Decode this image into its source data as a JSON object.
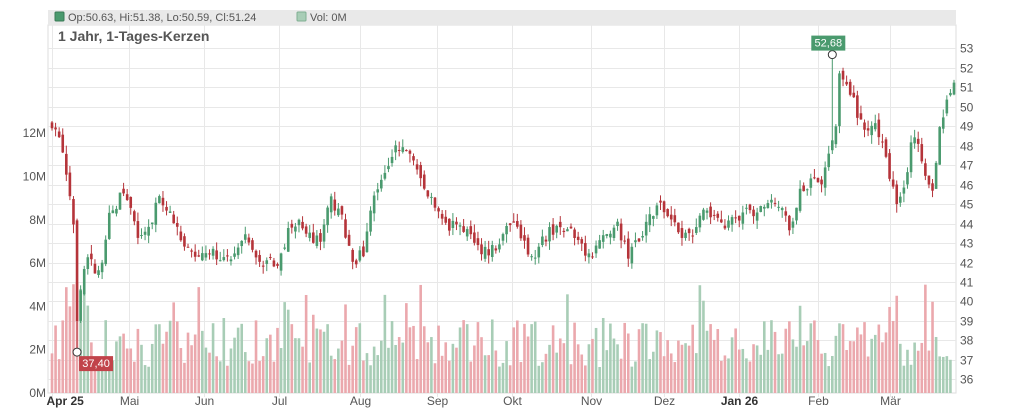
{
  "legend": {
    "ohlc_text": "Op:50.63, Hi:51.38, Lo:50.59, Cl:51.24",
    "vol_text": "Vol: 0M",
    "ohlc_color": "#4a9a6e",
    "vol_color": "#a8cdb6"
  },
  "chart_title": "1 Jahr, 1-Tages-Kerzen",
  "colors": {
    "up": "#4a9a6e",
    "down": "#b5343a",
    "vol_up": "#a8cdb6",
    "vol_down": "#eba8ad",
    "grid": "#e8e8e8",
    "high_marker": "#4a9a6e",
    "low_marker": "#c1434a"
  },
  "chart_data": {
    "type": "candlestick",
    "title": "1 Jahr, 1-Tages-Kerzen",
    "price_axis": {
      "range": [
        35.3,
        54.2
      ],
      "ticks": [
        36,
        37,
        38,
        39,
        40,
        41,
        42,
        43,
        44,
        45,
        46,
        47,
        48,
        49,
        50,
        51,
        52,
        53
      ],
      "position": "right"
    },
    "volume_axis": {
      "range_millions": [
        0,
        17
      ],
      "ticks": [
        "0M",
        "2M",
        "4M",
        "6M",
        "8M",
        "10M",
        "12M"
      ],
      "tick_values": [
        0,
        2,
        4,
        6,
        8,
        10,
        12
      ],
      "position": "left"
    },
    "x_labels": [
      "Apr 25",
      "Mai",
      "Jun",
      "Jul",
      "Aug",
      "Sep",
      "Okt",
      "Nov",
      "Dez",
      "Jan 26",
      "Feb",
      "Mär"
    ],
    "x_label_days": [
      0,
      21.5,
      42.5,
      63.5,
      86,
      107.5,
      128.5,
      150.5,
      171,
      192,
      214,
      234
    ],
    "bold_labels": [
      "Apr 25",
      "Jan 26"
    ],
    "total_days": 253,
    "markers": [
      {
        "label": "52,68",
        "day": 218,
        "value": 52.68,
        "type": "high"
      },
      {
        "label": "37,40",
        "day": 7,
        "value": 37.4,
        "type": "low"
      }
    ],
    "close_path": [
      [
        0,
        49.0
      ],
      [
        2,
        48.2
      ],
      [
        4,
        46.6
      ],
      [
        6,
        44.2
      ],
      [
        7,
        39.0
      ],
      [
        9,
        41.6
      ],
      [
        10,
        42.5
      ],
      [
        12,
        41.5
      ],
      [
        14,
        41.8
      ],
      [
        16,
        44.3
      ],
      [
        18,
        44.8
      ],
      [
        20,
        45.8
      ],
      [
        22,
        45.0
      ],
      [
        24,
        43.0
      ],
      [
        26,
        43.3
      ],
      [
        28,
        44.3
      ],
      [
        30,
        45.6
      ],
      [
        33,
        44.5
      ],
      [
        36,
        43.2
      ],
      [
        39,
        42.3
      ],
      [
        42,
        42.7
      ],
      [
        45,
        42.5
      ],
      [
        48,
        42.1
      ],
      [
        51,
        42.4
      ],
      [
        54,
        43.2
      ],
      [
        57,
        42.0
      ],
      [
        60,
        42.1
      ],
      [
        63,
        42.0
      ],
      [
        66,
        43.6
      ],
      [
        69,
        44.4
      ],
      [
        72,
        43.3
      ],
      [
        75,
        43.2
      ],
      [
        78,
        45.2
      ],
      [
        81,
        44.4
      ],
      [
        84,
        41.9
      ],
      [
        87,
        42.6
      ],
      [
        90,
        45.6
      ],
      [
        93,
        46.7
      ],
      [
        96,
        47.8
      ],
      [
        98,
        48.2
      ],
      [
        101,
        47.3
      ],
      [
        104,
        45.7
      ],
      [
        107,
        45.0
      ],
      [
        110,
        44.0
      ],
      [
        113,
        43.8
      ],
      [
        116,
        43.6
      ],
      [
        119,
        42.6
      ],
      [
        122,
        42.5
      ],
      [
        125,
        43.1
      ],
      [
        128,
        44.2
      ],
      [
        131,
        43.3
      ],
      [
        134,
        42.1
      ],
      [
        137,
        43.2
      ],
      [
        140,
        43.7
      ],
      [
        143,
        43.8
      ],
      [
        146,
        43.3
      ],
      [
        149,
        42.5
      ],
      [
        152,
        42.6
      ],
      [
        155,
        43.4
      ],
      [
        158,
        43.9
      ],
      [
        161,
        42.3
      ],
      [
        164,
        43.3
      ],
      [
        167,
        44.3
      ],
      [
        170,
        44.9
      ],
      [
        173,
        44.4
      ],
      [
        176,
        43.4
      ],
      [
        179,
        43.6
      ],
      [
        182,
        44.7
      ],
      [
        185,
        44.3
      ],
      [
        188,
        43.8
      ],
      [
        191,
        44.2
      ],
      [
        194,
        44.6
      ],
      [
        197,
        44.7
      ],
      [
        200,
        45.2
      ],
      [
        203,
        45.0
      ],
      [
        206,
        43.7
      ],
      [
        209,
        45.8
      ],
      [
        212,
        46.1
      ],
      [
        215,
        46.3
      ],
      [
        217,
        47.8
      ],
      [
        219,
        48.8
      ],
      [
        220,
        51.6
      ],
      [
        222,
        50.9
      ],
      [
        224,
        50.2
      ],
      [
        226,
        49.1
      ],
      [
        228,
        49.0
      ],
      [
        230,
        48.9
      ],
      [
        232,
        48.2
      ],
      [
        234,
        46.3
      ],
      [
        236,
        45.0
      ],
      [
        238,
        45.6
      ],
      [
        240,
        48.1
      ],
      [
        242,
        48.2
      ],
      [
        244,
        46.5
      ],
      [
        246,
        45.4
      ],
      [
        248,
        48.9
      ],
      [
        250,
        50.1
      ],
      [
        252,
        51.24
      ]
    ],
    "last": {
      "open": 50.63,
      "high": 51.38,
      "low": 50.59,
      "close": 51.24,
      "volume_millions": 0
    }
  }
}
